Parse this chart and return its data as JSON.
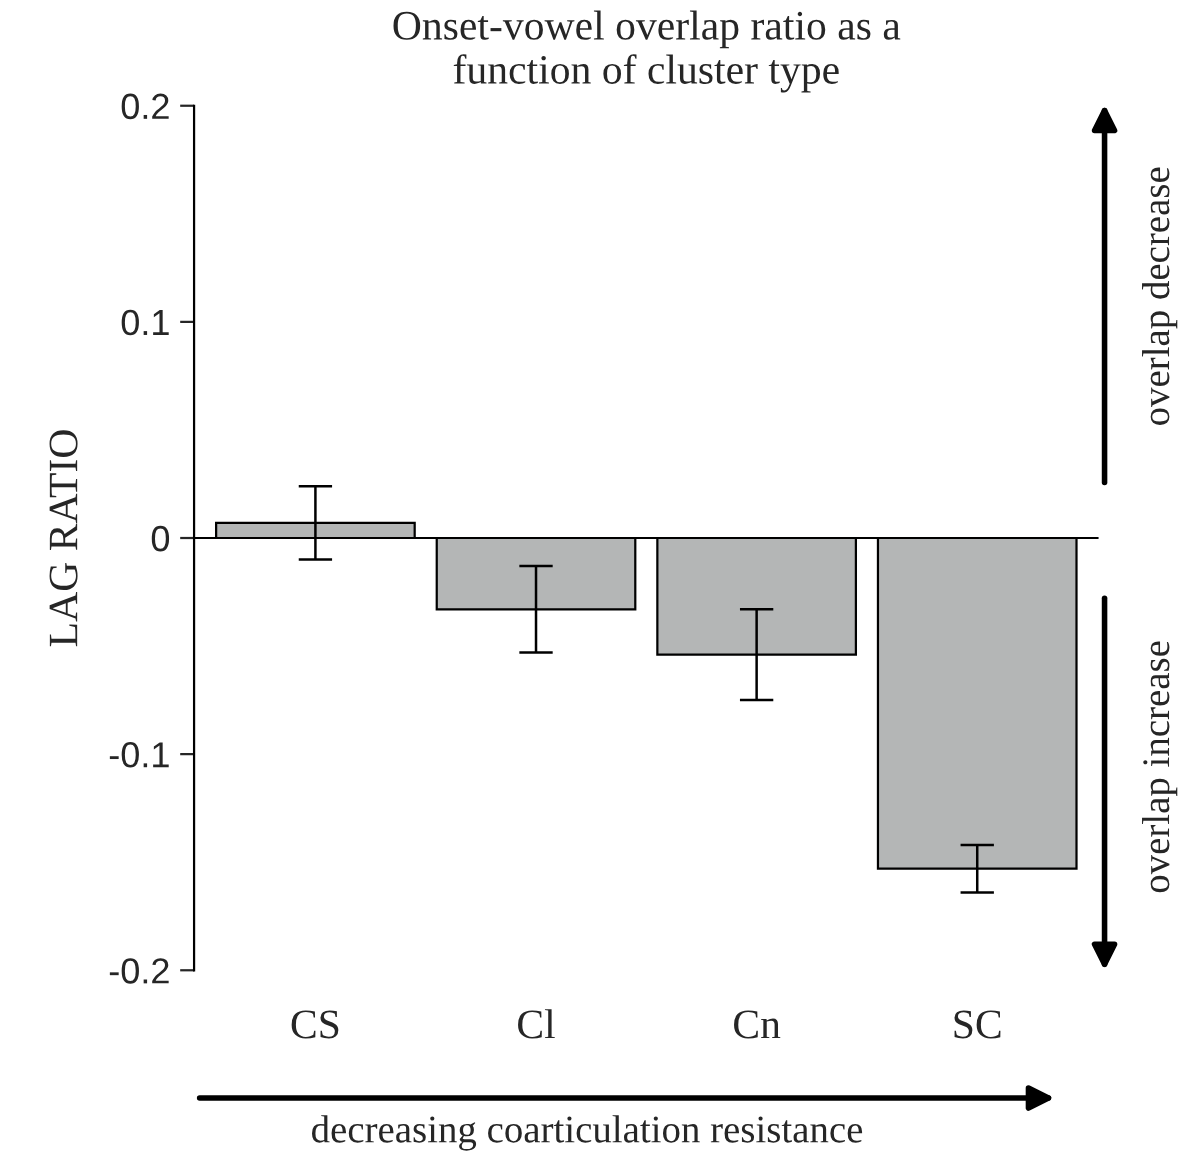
{
  "chart_data": {
    "type": "bar",
    "title": "Onset-vowel overlap ratio as a\nfunction of cluster type",
    "ylabel": "LAG RATIO",
    "categories": [
      "CS",
      "Cl",
      "Cn",
      "SC"
    ],
    "values": [
      0.007,
      -0.033,
      -0.054,
      -0.153
    ],
    "errors": [
      0.017,
      0.02,
      0.021,
      0.011
    ],
    "color": "#b4b6b6",
    "ylim": [
      -0.2,
      0.2
    ],
    "yticks": [
      {
        "value": -0.2,
        "label": "-0.2"
      },
      {
        "value": -0.1,
        "label": "-0.1"
      },
      0,
      0.1,
      0.2
    ],
    "ref_lines": [
      {
        "axis": "y",
        "value": 0,
        "label": null,
        "color": "#000000"
      }
    ],
    "annotations": [
      "overlap decrease",
      "overlap increase",
      "decreasing coarticulation resistance"
    ],
    "grid": false,
    "legend": false
  }
}
